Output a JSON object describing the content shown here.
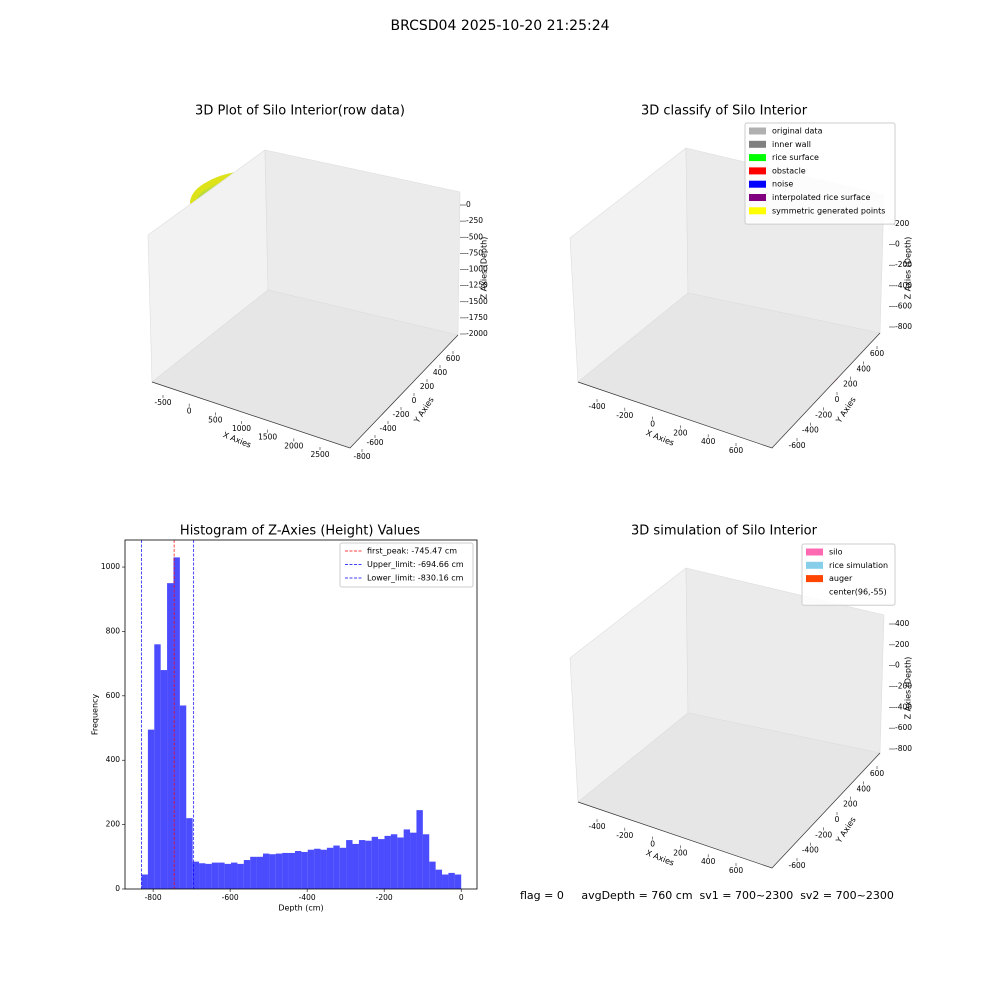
{
  "title": "BRCSD04 2025-10-20 21:25:24",
  "footer": "flag = 0     avgDepth = 760 cm  sv1 = 700~2300  sv2 = 700~2300",
  "chart_data": [
    {
      "type": "scatter3d",
      "title": "3D Plot of Silo Interior(row data)",
      "xlabel": "X Axies",
      "ylabel": "Y Axies",
      "zlabel": "Z Axies (Depth)",
      "xticks": [
        -500,
        0,
        500,
        1000,
        1500,
        2000,
        2500
      ],
      "yticks": [
        -800,
        -600,
        -400,
        -200,
        0,
        200,
        400,
        600
      ],
      "zticks": [
        0,
        -250,
        -500,
        -750,
        -1000,
        -1250,
        -1500,
        -1750,
        -2000
      ]
    },
    {
      "type": "scatter3d",
      "title": "3D classify of Silo Interior",
      "xlabel": "X Axies",
      "ylabel": "Y Axies",
      "zlabel": "Z Axies (Depth)",
      "xticks": [
        -400,
        -200,
        0,
        200,
        400,
        600
      ],
      "yticks": [
        -600,
        -400,
        -200,
        0,
        200,
        400,
        600
      ],
      "zticks": [
        200,
        0,
        -200,
        -400,
        -600,
        -800
      ],
      "legend": [
        {
          "name": "original data",
          "color": "#b0b0b0"
        },
        {
          "name": "inner wall",
          "color": "#808080"
        },
        {
          "name": "rice surface",
          "color": "#00ff00"
        },
        {
          "name": "obstacle",
          "color": "#ff0000"
        },
        {
          "name": "noise",
          "color": "#0000ff"
        },
        {
          "name": "interpolated rice surface",
          "color": "#800080"
        },
        {
          "name": "symmetric generated points",
          "color": "#ffff00"
        }
      ]
    },
    {
      "type": "histogram",
      "title": "Histogram of Z-Axies (Height) Values",
      "xlabel": "Depth (cm)",
      "ylabel": "Frequency",
      "color": "#0000ff",
      "bins": [
        -830.16,
        -813.56,
        -796.96,
        -780.35,
        -763.75,
        -747.14,
        -730.54,
        -713.94,
        -697.33,
        -680.73,
        -664.13,
        -647.52,
        -630.92,
        -614.32,
        -597.71,
        -581.11,
        -564.51,
        -547.9,
        -531.3,
        -514.7,
        -498.1,
        -481.49,
        -464.89,
        -448.29,
        -431.68,
        -415.08,
        -398.48,
        -381.87,
        -365.27,
        -348.67,
        -332.06,
        -315.46,
        -298.86,
        -282.25,
        -265.65,
        -249.05,
        -232.44,
        -215.84,
        -199.24,
        -182.63,
        -166.03,
        -149.43,
        -132.83,
        -116.22,
        -99.62,
        -83.02,
        -66.41,
        -49.81,
        -33.21,
        -16.6,
        0
      ],
      "values": [
        45,
        495,
        760,
        680,
        950,
        1030,
        570,
        220,
        85,
        80,
        78,
        82,
        82,
        78,
        82,
        78,
        90,
        100,
        100,
        110,
        108,
        110,
        112,
        112,
        118,
        115,
        122,
        125,
        122,
        128,
        135,
        128,
        152,
        140,
        152,
        150,
        162,
        155,
        165,
        170,
        160,
        185,
        175,
        245,
        170,
        85,
        60,
        45,
        50,
        45
      ],
      "xlim": [
        -873,
        41
      ],
      "ylim": [
        0,
        1084
      ],
      "xticks": [
        -800,
        -600,
        -400,
        -200,
        0
      ],
      "yticks": [
        0,
        200,
        400,
        600,
        800,
        1000
      ],
      "lines": [
        {
          "name": "first_peak: -745.47 cm",
          "value": -745.47,
          "color": "#ff0000"
        },
        {
          "name": "Upper_limit: -694.66 cm",
          "value": -694.66,
          "color": "#0000ff"
        },
        {
          "name": "Lower_limit: -830.16 cm",
          "value": -830.16,
          "color": "#0000ff"
        }
      ],
      "legend_loc": "upper right"
    },
    {
      "type": "surface3d",
      "title": "3D simulation of Silo Interior",
      "xlabel": "X Axies",
      "ylabel": "Y Axies",
      "zlabel": "Z Axies (Depth)",
      "xticks": [
        -400,
        -200,
        0,
        200,
        400,
        600
      ],
      "yticks": [
        -600,
        -400,
        -200,
        0,
        200,
        400,
        600
      ],
      "zticks": [
        400,
        200,
        0,
        -200,
        -400,
        -600,
        -800
      ],
      "legend": [
        {
          "name": "silo",
          "color": "#ff69b4"
        },
        {
          "name": "rice simulation",
          "color": "#87ceeb"
        },
        {
          "name": "auger",
          "color": "#ff4500"
        },
        {
          "name": "center(96,-55)",
          "color": "#ffffff"
        }
      ]
    }
  ]
}
